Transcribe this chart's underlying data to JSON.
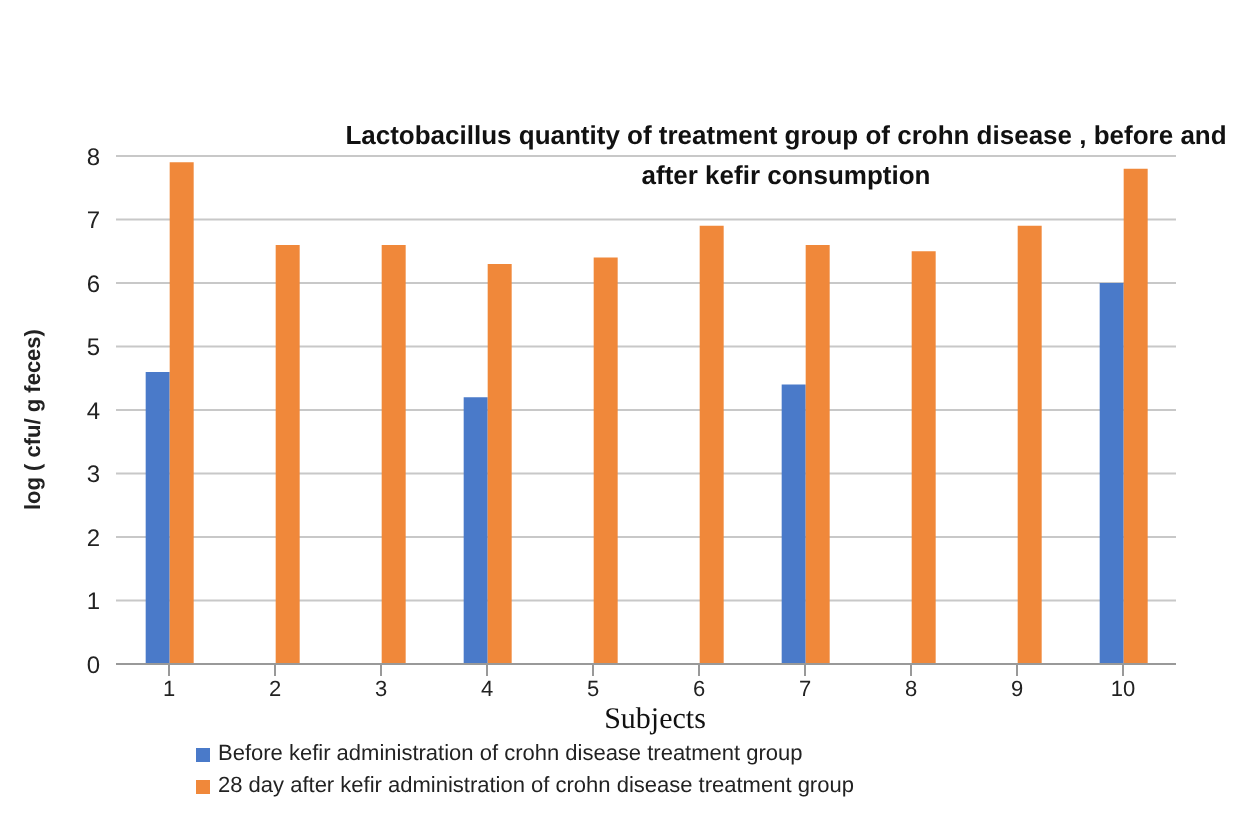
{
  "chart_data": {
    "type": "bar",
    "title": "Lactobacillus quantity of  treatment group of crohn disease , before and after kefir consumption",
    "xlabel": "Subjects",
    "ylabel": "log ( cfu/ g feces)",
    "categories": [
      "1",
      "2",
      "3",
      "4",
      "5",
      "6",
      "7",
      "8",
      "9",
      "10"
    ],
    "series": [
      {
        "name": "Before kefir administration of crohn disease treatment group",
        "color": "#4a7ac9",
        "values": [
          4.6,
          0,
          0,
          4.2,
          0,
          0,
          4.4,
          0,
          0,
          6.0
        ]
      },
      {
        "name": "28 day after kefir administration of crohn disease treatment group",
        "color": "#f0883a",
        "values": [
          7.9,
          6.6,
          6.6,
          6.3,
          6.4,
          6.9,
          6.6,
          6.5,
          6.9,
          7.8
        ]
      }
    ],
    "ylim": [
      0,
      8
    ],
    "yticks": [
      0,
      1,
      2,
      3,
      4,
      5,
      6,
      7,
      8
    ],
    "grid": "y",
    "legend": "bottom"
  }
}
